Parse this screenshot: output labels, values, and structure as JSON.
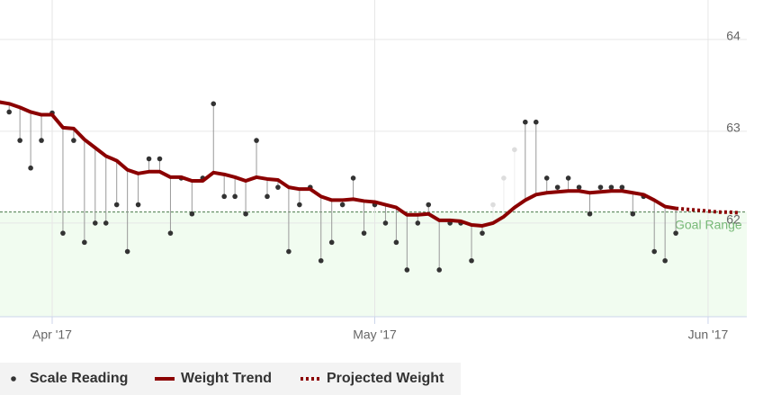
{
  "chart_data": {
    "type": "line",
    "categories": [
      null,
      null,
      null,
      null,
      null,
      "Apr '17",
      null,
      null,
      null,
      null,
      null,
      null,
      null,
      null,
      null,
      null,
      null,
      null,
      null,
      null,
      null,
      null,
      null,
      null,
      null,
      null,
      null,
      null,
      null,
      null,
      null,
      null,
      null,
      null,
      null,
      "May '17",
      null,
      null,
      null,
      null,
      null,
      null,
      null,
      null,
      null,
      null,
      null,
      null,
      null,
      null,
      null,
      null,
      null,
      null,
      null,
      null,
      null,
      null,
      null,
      null,
      null,
      null,
      null,
      null,
      null,
      null,
      "Jun '17",
      null,
      null,
      null
    ],
    "ylim": [
      60.98,
      64.43
    ],
    "yticks": [
      62,
      63,
      64
    ],
    "grid": true,
    "goal": {
      "value": 62.12,
      "label": "Goal Range",
      "color": "#77b977",
      "fill": "#f1fcf0"
    },
    "series": [
      {
        "name": "Scale Reading",
        "style": "dots",
        "color": "#333333",
        "stem_color": "#999999",
        "values": [
          null,
          63.21,
          62.9,
          62.6,
          62.9,
          63.2,
          61.89,
          62.9,
          61.79,
          62.0,
          62.0,
          62.2,
          61.69,
          62.2,
          62.7,
          62.7,
          61.89,
          62.49,
          62.1,
          62.49,
          63.3,
          62.29,
          62.29,
          62.1,
          62.9,
          62.29,
          62.39,
          61.69,
          62.2,
          62.39,
          61.59,
          61.79,
          62.2,
          62.49,
          61.89,
          62.2,
          62.0,
          61.79,
          61.49,
          62.0,
          62.2,
          61.49,
          62.0,
          62.0,
          61.59,
          61.89,
          null,
          null,
          null,
          63.1,
          63.1,
          62.49,
          62.39,
          62.49,
          62.39,
          62.1,
          62.39,
          62.39,
          62.39,
          62.1,
          62.29,
          61.69,
          61.59,
          61.89,
          null,
          null,
          null,
          null,
          null,
          null
        ]
      },
      {
        "name": "Weight Trend",
        "style": "line",
        "color": "#8b0000",
        "values": [
          63.32,
          63.3,
          63.26,
          63.21,
          63.18,
          63.18,
          63.04,
          63.03,
          62.91,
          62.82,
          62.73,
          62.68,
          62.58,
          62.54,
          62.56,
          62.56,
          62.5,
          62.5,
          62.46,
          62.46,
          62.55,
          62.53,
          62.5,
          62.46,
          62.5,
          62.48,
          62.47,
          62.39,
          62.37,
          62.37,
          62.29,
          62.25,
          62.25,
          62.26,
          62.24,
          62.23,
          62.2,
          62.17,
          62.09,
          62.09,
          62.1,
          62.03,
          62.03,
          62.02,
          61.98,
          61.97,
          62.0,
          62.07,
          62.17,
          62.25,
          62.31,
          62.33,
          62.34,
          62.35,
          62.35,
          62.33,
          62.34,
          62.35,
          62.35,
          62.33,
          62.31,
          62.25,
          62.18,
          62.16,
          null,
          null,
          null,
          null,
          null,
          null
        ]
      },
      {
        "name": "Projected Weight",
        "style": "dotted",
        "color": "#8b0000",
        "values": [
          null,
          null,
          null,
          null,
          null,
          null,
          null,
          null,
          null,
          null,
          null,
          null,
          null,
          null,
          null,
          null,
          null,
          null,
          null,
          null,
          null,
          null,
          null,
          null,
          null,
          null,
          null,
          null,
          null,
          null,
          null,
          null,
          null,
          null,
          null,
          null,
          null,
          null,
          null,
          null,
          null,
          null,
          null,
          null,
          null,
          null,
          null,
          null,
          null,
          null,
          null,
          null,
          null,
          null,
          null,
          null,
          null,
          null,
          null,
          null,
          null,
          null,
          null,
          62.16,
          62.15,
          62.14,
          62.13,
          62.12,
          62.12,
          62.11
        ]
      },
      {
        "style": "dots",
        "color": "#dddddd",
        "stem_color": "#eeeeee",
        "values": [
          null,
          null,
          null,
          null,
          null,
          null,
          null,
          null,
          null,
          null,
          null,
          null,
          null,
          null,
          null,
          null,
          null,
          null,
          null,
          null,
          null,
          null,
          null,
          null,
          null,
          null,
          null,
          null,
          null,
          null,
          null,
          null,
          null,
          null,
          null,
          null,
          null,
          null,
          null,
          null,
          null,
          null,
          null,
          null,
          null,
          null,
          62.2,
          62.49,
          62.8,
          null,
          null,
          null,
          null,
          null,
          null,
          null,
          null,
          null,
          null,
          null,
          null,
          null,
          null,
          null,
          null,
          null,
          null,
          null,
          null,
          null
        ]
      }
    ]
  }
}
